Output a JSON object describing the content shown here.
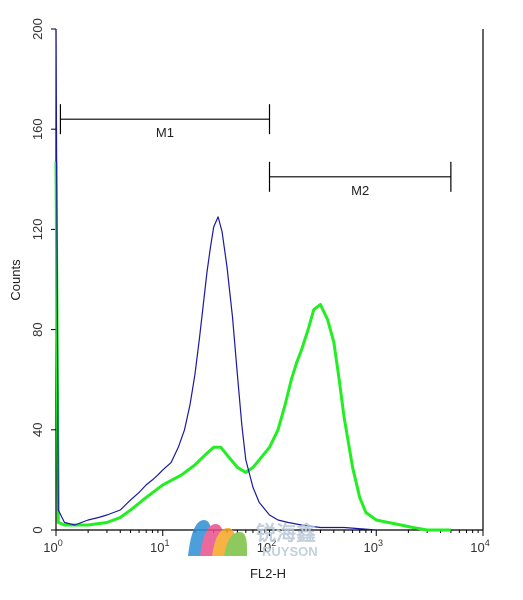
{
  "chart_data": {
    "type": "line",
    "title": "",
    "xlabel": "FL2-H",
    "ylabel": "Counts",
    "x_scale": "log",
    "xlim": [
      1,
      10000
    ],
    "ylim": [
      0,
      200
    ],
    "x_tick_labels": [
      {
        "base": "10",
        "exp": "0",
        "value": 1
      },
      {
        "base": "10",
        "exp": "1",
        "value": 10
      },
      {
        "base": "10",
        "exp": "2",
        "value": 100
      },
      {
        "base": "10",
        "exp": "3",
        "value": 1000
      },
      {
        "base": "10",
        "exp": "4",
        "value": 10000
      }
    ],
    "y_ticks": [
      "0",
      "40",
      "80",
      "120",
      "160",
      "200"
    ],
    "grid": false,
    "gates": [
      {
        "label": "M1",
        "x_start": 1.1,
        "x_end": 100,
        "y": 164
      },
      {
        "label": "M2",
        "x_start": 100,
        "x_end": 5000,
        "y": 141
      }
    ],
    "series": [
      {
        "color": "#1a1aa0",
        "x": [
          1,
          1.05,
          1.2,
          1.5,
          2,
          2.5,
          3,
          4,
          5,
          6,
          7,
          8,
          9,
          10,
          12,
          14,
          16,
          18,
          20,
          22,
          24,
          26,
          28,
          30,
          33,
          36,
          40,
          45,
          50,
          55,
          60,
          70,
          80,
          100,
          120,
          150,
          200,
          300,
          500,
          1000
        ],
        "y": [
          200,
          8,
          3,
          2,
          4,
          5,
          6,
          8,
          12,
          15,
          18,
          20,
          22,
          24,
          27,
          33,
          40,
          50,
          62,
          76,
          90,
          103,
          113,
          121,
          125,
          119,
          105,
          85,
          62,
          42,
          28,
          17,
          11,
          6,
          4,
          3,
          2,
          1,
          1,
          0
        ]
      },
      {
        "color": "#22ee22",
        "x": [
          1,
          1.05,
          1.2,
          1.5,
          2,
          3,
          4,
          5,
          7,
          10,
          15,
          20,
          25,
          30,
          35,
          40,
          50,
          60,
          70,
          80,
          100,
          120,
          140,
          160,
          180,
          200,
          230,
          260,
          300,
          350,
          400,
          450,
          500,
          600,
          700,
          800,
          1000,
          1300,
          1700,
          2200,
          3000,
          5000
        ],
        "y": [
          147,
          3,
          2,
          2,
          2,
          3,
          5,
          8,
          13,
          18,
          22,
          26,
          30,
          33,
          33,
          30,
          25,
          23,
          25,
          28,
          33,
          40,
          50,
          60,
          67,
          72,
          80,
          88,
          90,
          84,
          75,
          60,
          45,
          25,
          13,
          7,
          4,
          3,
          2,
          1,
          0,
          0
        ]
      }
    ]
  },
  "watermark": {
    "name_cn": "锐海鑫",
    "name_en": "RUYSON",
    "colors": [
      "#2f8fd6",
      "#e84f8c",
      "#f5a623",
      "#7bc043"
    ]
  }
}
